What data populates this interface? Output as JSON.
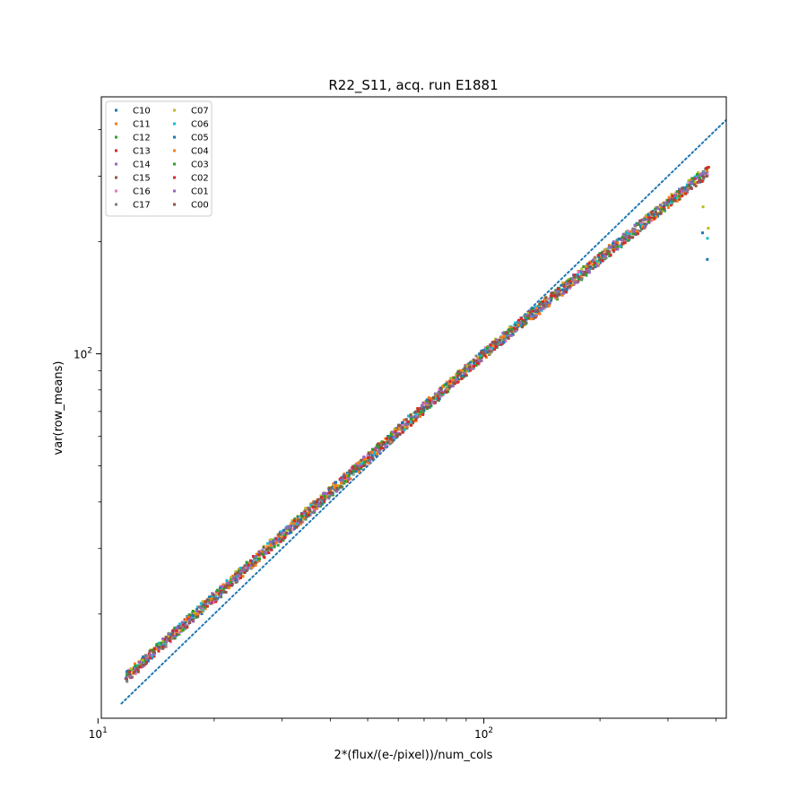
{
  "chart_data": {
    "type": "scatter",
    "title": "R22_S11, acq. run E1881",
    "xlabel": "2*(flux/(e-/pixel))/num_cols",
    "ylabel": "var(row_means)",
    "xscale": "log",
    "yscale": "log",
    "xlim": [
      10.2,
      425
    ],
    "ylim": [
      10.5,
      490
    ],
    "x_ticks": [
      {
        "value": 10,
        "base": "10",
        "exp": "1"
      },
      {
        "value": 100,
        "base": "10",
        "exp": "2"
      }
    ],
    "y_ticks": [
      {
        "value": 100,
        "base": "10",
        "exp": "2"
      }
    ],
    "grid": false,
    "legend_position": "top-left",
    "legend_columns": 2,
    "reference_line": {
      "style": "dotted",
      "color": "#1f77b4",
      "slope": 1,
      "x_range": [
        11.5,
        430
      ]
    },
    "series": [
      {
        "name": "C10",
        "color": "#1f77b4",
        "offset": 0.045,
        "drop": 0.58
      },
      {
        "name": "C11",
        "color": "#ff7f0e",
        "offset": 0.052,
        "drop": 0.0
      },
      {
        "name": "C12",
        "color": "#2ca02c",
        "offset": 0.04,
        "drop": 0.0
      },
      {
        "name": "C13",
        "color": "#d62728",
        "offset": 0.048,
        "drop": 0.0
      },
      {
        "name": "C14",
        "color": "#9467bd",
        "offset": 0.05,
        "drop": 0.0
      },
      {
        "name": "C15",
        "color": "#8c564b",
        "offset": 0.043,
        "drop": 0.0
      },
      {
        "name": "C16",
        "color": "#e377c2",
        "offset": 0.046,
        "drop": 0.0
      },
      {
        "name": "C17",
        "color": "#7f7f7f",
        "offset": 0.044,
        "drop": 0.0
      },
      {
        "name": "C07",
        "color": "#bcbd22",
        "offset": 0.055,
        "drop": 0.7
      },
      {
        "name": "C06",
        "color": "#17becf",
        "offset": 0.05,
        "drop": 0.66
      },
      {
        "name": "C05",
        "color": "#1f77b4",
        "offset": 0.047,
        "drop": 0.0
      },
      {
        "name": "C04",
        "color": "#ff7f0e",
        "offset": 0.042,
        "drop": 0.0
      },
      {
        "name": "C03",
        "color": "#2ca02c",
        "offset": 0.049,
        "drop": 0.0
      },
      {
        "name": "C02",
        "color": "#d62728",
        "offset": 0.041,
        "drop": 0.0
      },
      {
        "name": "C01",
        "color": "#9467bd",
        "offset": 0.046,
        "drop": 0.0
      },
      {
        "name": "C00",
        "color": "#8c564b",
        "offset": 0.048,
        "drop": 0.0
      }
    ],
    "curve": {
      "x_start": 11.8,
      "x_end": 385,
      "n_points": 150,
      "model": "y = x * 10^(offset*(1 - log10(x/11.8)/log10(32.6)) ... approx, saturating near top)"
    }
  }
}
